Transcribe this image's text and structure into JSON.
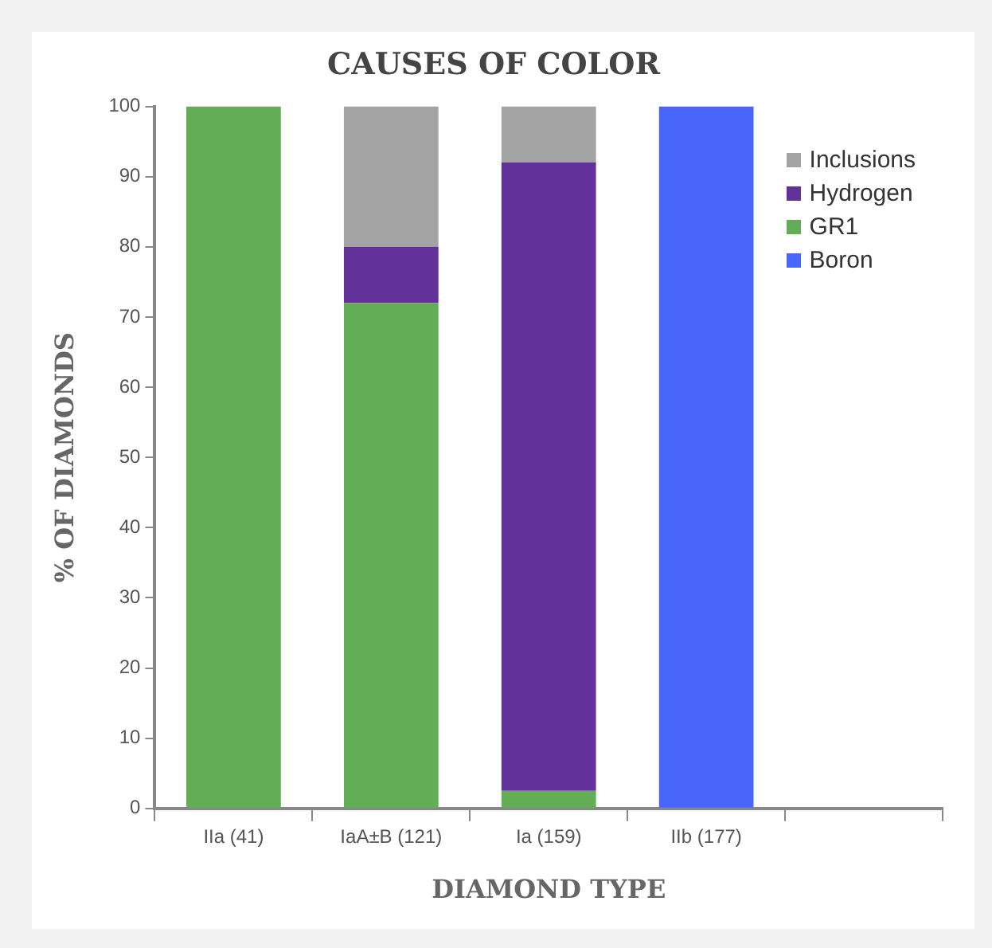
{
  "chart_data": {
    "type": "bar",
    "title": "CAUSES OF COLOR",
    "xlabel": "DIAMOND TYPE",
    "ylabel": "% OF DIAMONDS",
    "categories": [
      "IIa (41)",
      "IaA±B (121)",
      "Ia (159)",
      "IIb (177)",
      null
    ],
    "stacked": true,
    "ylim": [
      0,
      100
    ],
    "yticks": [
      0,
      10,
      20,
      30,
      40,
      50,
      60,
      70,
      80,
      90,
      100
    ],
    "grid": false,
    "legend": "top right",
    "series": [
      {
        "name": "GR1",
        "color": "#63ad56",
        "values": [
          100,
          72,
          2.5,
          null,
          null
        ]
      },
      {
        "name": "Hydrogen",
        "color": "#62329a",
        "values": [
          null,
          8,
          89.5,
          null,
          null
        ]
      },
      {
        "name": "Inclusions",
        "color": "#a3a3a3",
        "values": [
          null,
          20,
          8,
          null,
          null
        ]
      },
      {
        "name": "Boron",
        "color": "#4867fa",
        "values": [
          null,
          null,
          null,
          100,
          null
        ]
      }
    ]
  }
}
